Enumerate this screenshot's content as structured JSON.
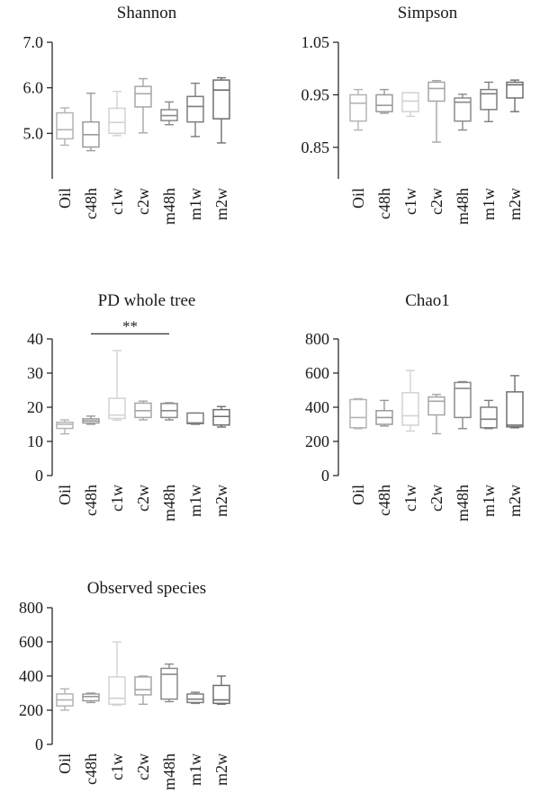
{
  "chart_data": [
    {
      "type": "box",
      "title": "Shannon",
      "categories": [
        "Oil",
        "c48h",
        "c1w",
        "c2w",
        "m48h",
        "m1w",
        "m2w"
      ],
      "ylim": [
        4.0,
        7.0
      ],
      "yticks": [
        "7.0",
        "6.0",
        "5.0"
      ],
      "ytick_values": [
        7.0,
        6.0,
        5.0
      ],
      "boxes": [
        {
          "min": 4.74,
          "q1": 4.88,
          "median": 5.08,
          "q3": 5.45,
          "max": 5.56
        },
        {
          "min": 4.62,
          "q1": 4.7,
          "median": 4.97,
          "q3": 5.25,
          "max": 5.88
        },
        {
          "min": 4.95,
          "q1": 5.0,
          "median": 5.24,
          "q3": 5.55,
          "max": 5.92
        },
        {
          "min": 5.01,
          "q1": 5.58,
          "median": 5.87,
          "q3": 6.03,
          "max": 6.2
        },
        {
          "min": 5.19,
          "q1": 5.28,
          "median": 5.39,
          "q3": 5.52,
          "max": 5.69
        },
        {
          "min": 4.93,
          "q1": 5.25,
          "median": 5.59,
          "q3": 5.81,
          "max": 6.1
        },
        {
          "min": 4.79,
          "q1": 5.32,
          "median": 5.95,
          "q3": 6.17,
          "max": 6.22
        }
      ]
    },
    {
      "type": "box",
      "title": "Simpson",
      "categories": [
        "Oil",
        "c48h",
        "c1w",
        "c2w",
        "m48h",
        "m1w",
        "m2w"
      ],
      "ylim": [
        0.79,
        1.05
      ],
      "yticks": [
        "1.05",
        "0.95",
        "0.85"
      ],
      "ytick_values": [
        1.05,
        0.95,
        0.85
      ],
      "boxes": [
        {
          "min": 0.883,
          "q1": 0.9,
          "median": 0.934,
          "q3": 0.95,
          "max": 0.96
        },
        {
          "min": 0.915,
          "q1": 0.918,
          "median": 0.93,
          "q3": 0.95,
          "max": 0.96
        },
        {
          "min": 0.909,
          "q1": 0.918,
          "median": 0.938,
          "q3": 0.954,
          "max": 0.954
        },
        {
          "min": 0.86,
          "q1": 0.938,
          "median": 0.962,
          "q3": 0.974,
          "max": 0.977
        },
        {
          "min": 0.883,
          "q1": 0.9,
          "median": 0.936,
          "q3": 0.944,
          "max": 0.951
        },
        {
          "min": 0.899,
          "q1": 0.922,
          "median": 0.952,
          "q3": 0.96,
          "max": 0.974
        },
        {
          "min": 0.918,
          "q1": 0.944,
          "median": 0.969,
          "q3": 0.974,
          "max": 0.978
        }
      ]
    },
    {
      "type": "box",
      "title": "PD whole tree",
      "categories": [
        "Oil",
        "c48h",
        "c1w",
        "c2w",
        "m48h",
        "m1w",
        "m2w"
      ],
      "ylim": [
        0,
        40
      ],
      "yticks": [
        "40",
        "30",
        "20",
        "10",
        "0"
      ],
      "ytick_values": [
        40,
        30,
        20,
        10,
        0
      ],
      "annotation": {
        "text": "**",
        "from": "c48h",
        "to": "m48h",
        "y": 41.5
      },
      "boxes": [
        {
          "min": 12.2,
          "q1": 13.8,
          "median": 15.0,
          "q3": 15.6,
          "max": 16.3
        },
        {
          "min": 15.0,
          "q1": 15.4,
          "median": 16.0,
          "q3": 16.6,
          "max": 17.4
        },
        {
          "min": 16.2,
          "q1": 16.7,
          "median": 17.7,
          "q3": 22.6,
          "max": 36.6
        },
        {
          "min": 16.3,
          "q1": 17.0,
          "median": 19.0,
          "q3": 21.2,
          "max": 21.8
        },
        {
          "min": 16.3,
          "q1": 17.0,
          "median": 19.0,
          "q3": 21.1,
          "max": 21.3
        },
        {
          "min": 15.0,
          "q1": 15.2,
          "median": 15.4,
          "q3": 18.3,
          "max": 18.3
        },
        {
          "min": 14.2,
          "q1": 14.8,
          "median": 17.3,
          "q3": 19.3,
          "max": 20.2
        }
      ]
    },
    {
      "type": "box",
      "title": "Chao1",
      "categories": [
        "Oil",
        "c48h",
        "c1w",
        "c2w",
        "m48h",
        "m1w",
        "m2w"
      ],
      "ylim": [
        0,
        800
      ],
      "yticks": [
        "800",
        "600",
        "400",
        "200",
        "0"
      ],
      "ytick_values": [
        800,
        600,
        400,
        200,
        0
      ],
      "boxes": [
        {
          "min": 275,
          "q1": 280,
          "median": 340,
          "q3": 445,
          "max": 450
        },
        {
          "min": 290,
          "q1": 300,
          "median": 340,
          "q3": 380,
          "max": 440
        },
        {
          "min": 260,
          "q1": 295,
          "median": 350,
          "q3": 485,
          "max": 615
        },
        {
          "min": 245,
          "q1": 355,
          "median": 435,
          "q3": 460,
          "max": 475
        },
        {
          "min": 275,
          "q1": 340,
          "median": 510,
          "q3": 545,
          "max": 550
        },
        {
          "min": 275,
          "q1": 280,
          "median": 330,
          "q3": 400,
          "max": 440
        },
        {
          "min": 280,
          "q1": 285,
          "median": 295,
          "q3": 490,
          "max": 585
        }
      ]
    },
    {
      "type": "box",
      "title": "Observed species",
      "categories": [
        "Oil",
        "c48h",
        "c1w",
        "c2w",
        "m48h",
        "m1w",
        "m2w"
      ],
      "ylim": [
        0,
        800
      ],
      "yticks": [
        "800",
        "600",
        "400",
        "200",
        "0"
      ],
      "ytick_values": [
        800,
        600,
        400,
        200,
        0
      ],
      "boxes": [
        {
          "min": 200,
          "q1": 225,
          "median": 260,
          "q3": 295,
          "max": 325
        },
        {
          "min": 245,
          "q1": 255,
          "median": 280,
          "q3": 295,
          "max": 300
        },
        {
          "min": 230,
          "q1": 235,
          "median": 270,
          "q3": 395,
          "max": 600
        },
        {
          "min": 235,
          "q1": 290,
          "median": 320,
          "q3": 395,
          "max": 400
        },
        {
          "min": 250,
          "q1": 265,
          "median": 410,
          "q3": 445,
          "max": 470
        },
        {
          "min": 240,
          "q1": 245,
          "median": 265,
          "q3": 295,
          "max": 305
        },
        {
          "min": 235,
          "q1": 240,
          "median": 260,
          "q3": 345,
          "max": 400
        }
      ]
    }
  ]
}
